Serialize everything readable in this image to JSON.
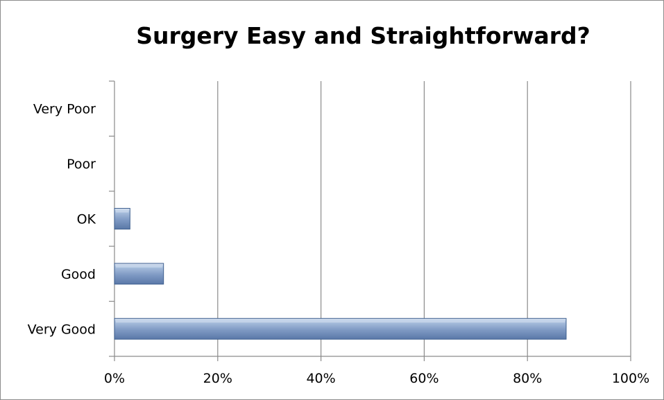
{
  "chart_data": {
    "type": "bar",
    "orientation": "horizontal",
    "title": "Surgery Easy and Straightforward?",
    "categories": [
      "Very Poor",
      "Poor",
      "OK",
      "Good",
      "Very Good"
    ],
    "values": [
      0,
      0,
      3,
      9.5,
      87.5
    ],
    "xlim": [
      0,
      100
    ],
    "x_ticks": [
      "0%",
      "20%",
      "40%",
      "60%",
      "80%",
      "100%"
    ],
    "x_tick_values": [
      0,
      20,
      40,
      60,
      80,
      100
    ],
    "grid": "vertical",
    "legend": "none",
    "bar_color": "#7f9ac4",
    "bar_highlight": "#c6d5ea",
    "bar_edge": "#3e5f8f"
  }
}
